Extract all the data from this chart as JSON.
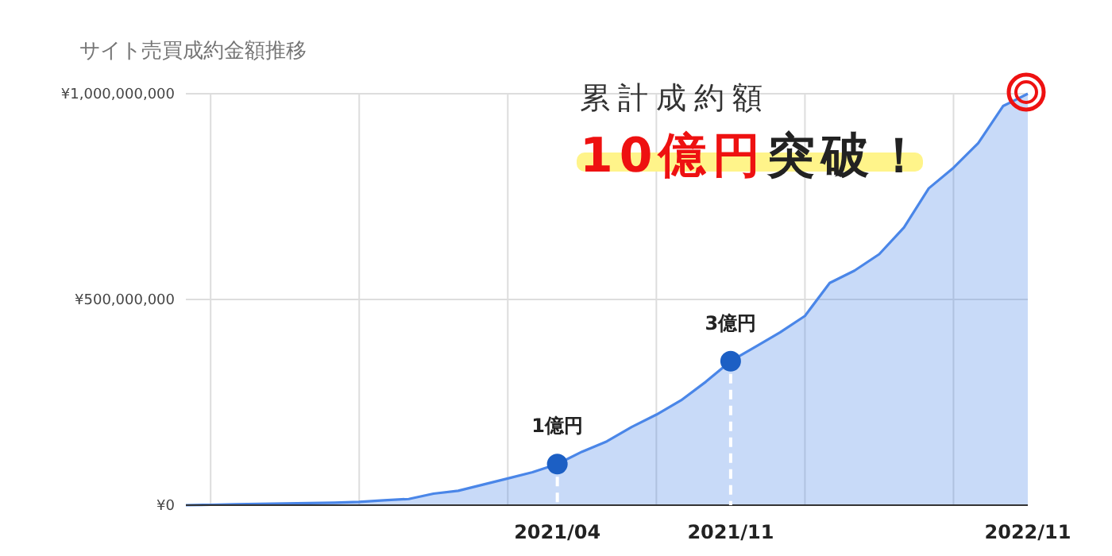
{
  "chart_data": {
    "type": "area",
    "title": "サイト売買成約金額推移",
    "categories": [
      null,
      null,
      null,
      null,
      null,
      null,
      null,
      null,
      null,
      null,
      null,
      null,
      null,
      null,
      null,
      "2021/04",
      null,
      null,
      null,
      null,
      null,
      null,
      "2021/11",
      null,
      null,
      null,
      null,
      null,
      null,
      null,
      null,
      null,
      null,
      null,
      "2022/11"
    ],
    "series": [
      {
        "color": "#4a86e8",
        "values": [
          0,
          1000000,
          2000000,
          3000000,
          4000000,
          5000000,
          6000000,
          8000000,
          12000000,
          15000000,
          28000000,
          35000000,
          50000000,
          65000000,
          80000000,
          100000000,
          130000000,
          155000000,
          190000000,
          220000000,
          255000000,
          300000000,
          350000000,
          385000000,
          420000000,
          460000000,
          540000000,
          570000000,
          610000000,
          675000000,
          770000000,
          820000000,
          880000000,
          970000000,
          1000000000
        ]
      }
    ],
    "ylim": [
      0,
      1000000000
    ],
    "yticks": [
      {
        "value": 0,
        "label": "¥0"
      },
      {
        "value": 500000000,
        "label": "¥500,000,000"
      },
      {
        "value": 1000000000,
        "label": "¥1,000,000,000"
      }
    ],
    "grid": true,
    "annotations": [
      "累計成約額",
      "10億円",
      "突破！",
      {
        "text": "1億円",
        "x": "2021/04",
        "y": 100000000
      },
      {
        "text": "3億円",
        "x": "2021/11",
        "y": 350000000
      }
    ]
  }
}
